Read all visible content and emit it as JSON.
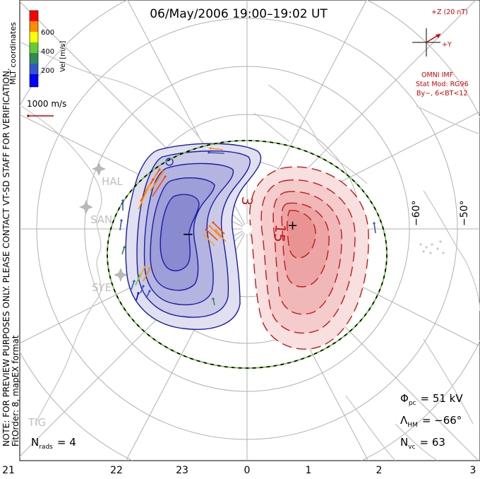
{
  "title": "06/May/2006 19:00–19:02 UT",
  "side_notes": {
    "left_upper": "MLT coordinates",
    "left_warning": "NOTE: FOR PREVIEW PURPOSES ONLY. PLEASE CONTACT VT-SD STAFF FOR VERIFICATION.",
    "left_fit": "FitOrder: 8, mapEX format"
  },
  "colorbar": {
    "label": "Vel [m/s]",
    "ticks": [
      "600",
      "400",
      "200"
    ],
    "colors": [
      "#ff0000",
      "#ff8c00",
      "#ffff00",
      "#66cc33",
      "#2e8b57",
      "#3355cc",
      "#0000ff"
    ]
  },
  "scale_vector": {
    "label": "1000 m/s",
    "color": "#cc0000"
  },
  "imf": {
    "z_label": "+Z (20 nT)",
    "y_label": "+Y",
    "source": "OMNI IMF",
    "model_line1": "Stat Mod: RG96",
    "model_line2": "By−, 6<BT<12",
    "color": "#cc0000"
  },
  "stations": [
    {
      "name": "HAL"
    },
    {
      "name": "SAN"
    },
    {
      "name": "SYE"
    },
    {
      "name": "TIG"
    }
  ],
  "lat_labels": [
    "−60°",
    "−50°"
  ],
  "contour_labels": {
    "minus": "−",
    "plus": "+",
    "neg": "3",
    "pos": "15"
  },
  "mlt_labels": [
    "21",
    "22",
    "23",
    "0",
    "1",
    "2",
    "3"
  ],
  "stats": {
    "phi_label": "Φ",
    "phi_sub": "pc",
    "phi_value": "= 51 kV",
    "lambda_label": "Λ",
    "lambda_sub": "HM",
    "lambda_value": "= −66°",
    "nvc_label": "N",
    "nvc_sub": "vc",
    "nvc_value": "= 63",
    "nrads_label": "N",
    "nrads_sub": "rads",
    "nrads_value": "= 4"
  },
  "colors": {
    "neg_contour": "#1a1aa8",
    "pos_contour": "#c41818",
    "hmb_dash1": "#000000",
    "hmb_dash2": "#66cc33",
    "grid": "#b0b0b0",
    "land": "#c8c8c8"
  }
}
